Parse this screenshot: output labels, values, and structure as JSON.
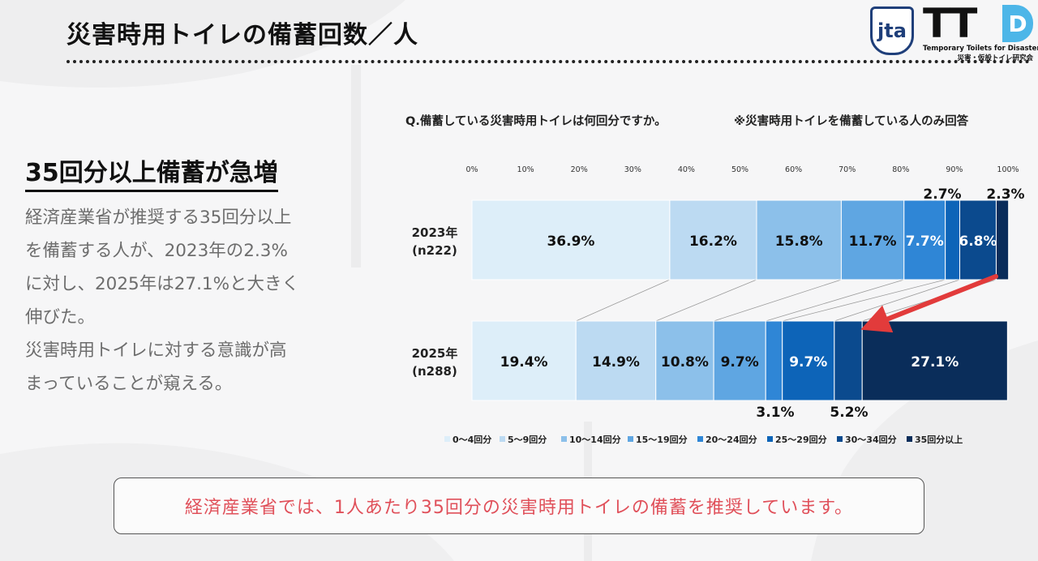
{
  "slide": {
    "title": "災害時用トイレの備蓄回数／人"
  },
  "logos": {
    "jta": "jta",
    "ttd_letters": "TT",
    "ttd_d": "D",
    "ttd_sub1": "Temporary Toilets for Disaster",
    "ttd_sub2": "災害・仮設トイレ研究会"
  },
  "summary": {
    "headline": "35回分以上備蓄が急増",
    "lines": [
      "経済産業省が推奨する35回分以上",
      "を備蓄する人が、2023年の2.3%",
      "に対し、2025年は27.1%と大きく",
      "伸びた。",
      "災害時用トイレに対する意識が高",
      "まっていることが窺える。"
    ]
  },
  "chart_header": {
    "question": "Q.備蓄している災害時用トイレは何回分ですか。",
    "note": "※災害時用トイレを備蓄している人のみ回答"
  },
  "chart_data": {
    "type": "bar",
    "orientation": "horizontal-stacked-100",
    "xlim": [
      0,
      100
    ],
    "ticks": [
      "0%",
      "10%",
      "20%",
      "30%",
      "40%",
      "50%",
      "60%",
      "70%",
      "80%",
      "90%",
      "100%"
    ],
    "series_names": [
      "0～4回分",
      "5～9回分",
      "10～14回分",
      "15～19回分",
      "20～24回分",
      "25～29回分",
      "30～34回分",
      "35回分以上"
    ],
    "colors": [
      "#ddeef9",
      "#bcdaf2",
      "#8cc0ea",
      "#5fa6e2",
      "#2f86d6",
      "#0d64b8",
      "#0b4a8e",
      "#0a2d5a"
    ],
    "rows": [
      {
        "label": [
          "2023年",
          "(n222)"
        ],
        "values": [
          36.9,
          16.2,
          15.8,
          11.7,
          7.7,
          2.7,
          6.8,
          2.3
        ],
        "value_labels": [
          "36.9%",
          "16.2%",
          "15.8%",
          "11.7%",
          "7.7%",
          "2.7%",
          "6.8%",
          "2.3%"
        ]
      },
      {
        "label": [
          "2025年",
          "(n288)"
        ],
        "values": [
          19.4,
          14.9,
          10.8,
          9.7,
          3.1,
          9.7,
          5.2,
          27.1
        ],
        "value_labels": [
          "19.4%",
          "14.9%",
          "10.8%",
          "9.7%",
          "3.1%",
          "9.7%",
          "5.2%",
          "27.1%"
        ]
      }
    ],
    "legend_placement": "bottom",
    "grid": false
  },
  "callout": {
    "text": "経済産業省では、1人あたり35回分の災害時用トイレの備蓄を推奨しています。"
  }
}
